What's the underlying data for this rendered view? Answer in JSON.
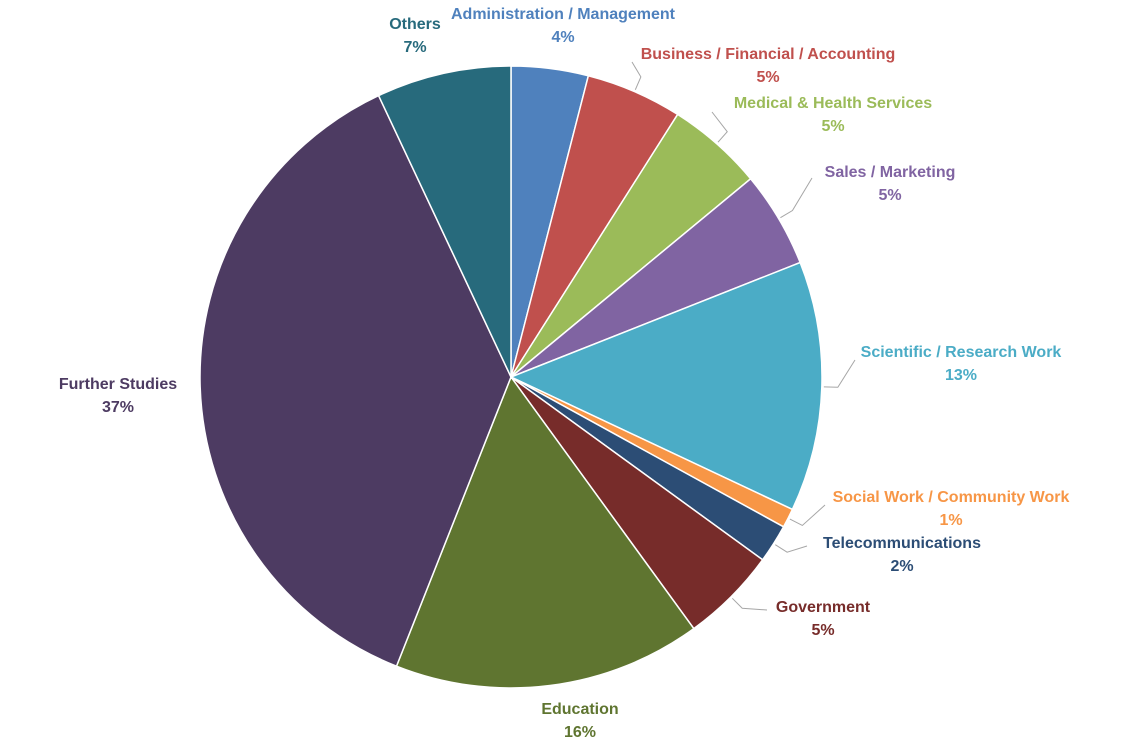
{
  "chart_data": {
    "type": "pie",
    "categories": [
      "Administration / Management",
      "Business / Financial / Accounting",
      "Medical & Health Services",
      "Sales / Marketing",
      "Scientific / Research Work",
      "Social Work / Community Work",
      "Telecommunications",
      "Government",
      "Education",
      "Further Studies",
      "Others"
    ],
    "values": [
      4,
      5,
      5,
      5,
      13,
      1,
      2,
      5,
      16,
      37,
      7
    ],
    "value_labels": [
      "4%",
      "5%",
      "5%",
      "5%",
      "13%",
      "1%",
      "2%",
      "5%",
      "16%",
      "37%",
      "7%"
    ],
    "colors": [
      "#4f81bd",
      "#c0504d",
      "#9bbb59",
      "#8064a2",
      "#4bacc6",
      "#f79646",
      "#2c4d75",
      "#772c2a",
      "#5f7530",
      "#4d3b62",
      "#276a7c"
    ]
  }
}
